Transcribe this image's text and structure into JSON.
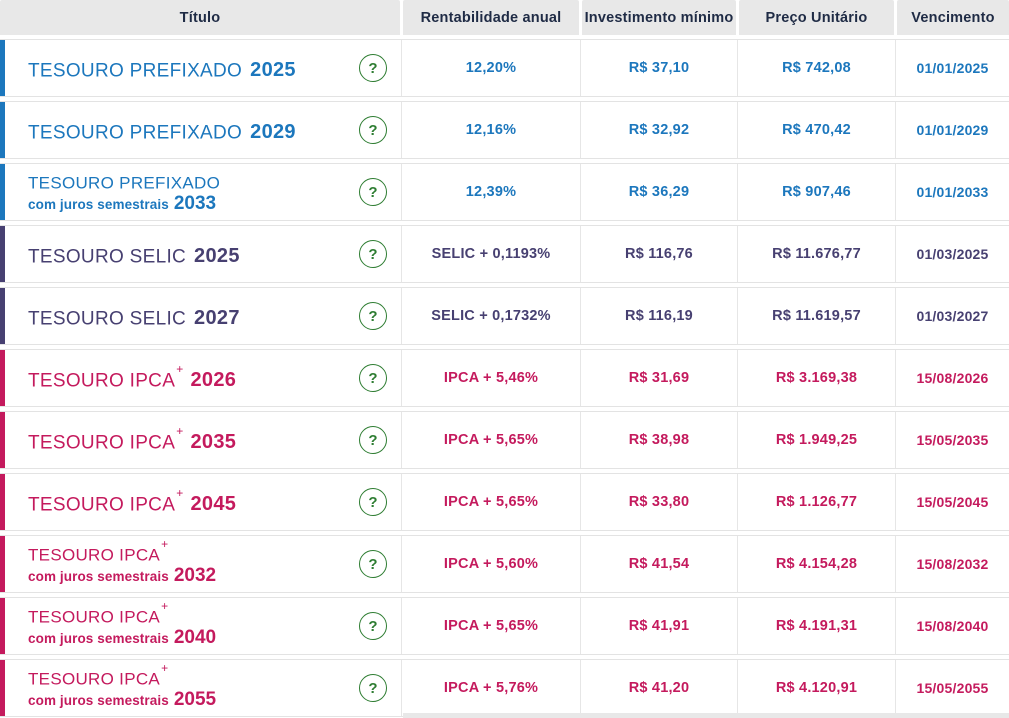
{
  "table": {
    "columns": [
      "Título",
      "Rentabilidade anual",
      "Investimento mínimo",
      "Preço Unitário",
      "Vencimento"
    ]
  },
  "colors": {
    "prefixado": "#1c77bd",
    "selic": "#474071",
    "ipca": "#c41a5d",
    "help_green": "#2e7d32",
    "header_bg": "#e8e8e8",
    "header_text": "#1f2b45"
  },
  "help_icon": "?",
  "rows": [
    {
      "type": "prefixado",
      "title": "TESOURO PREFIXADO",
      "title_sup": "",
      "subtitle": "",
      "year": "2025",
      "rentabilidade": "12,20%",
      "investimento": "R$ 37,10",
      "preco_unitario": "R$ 742,08",
      "vencimento": "01/01/2025"
    },
    {
      "type": "prefixado",
      "title": "TESOURO PREFIXADO",
      "title_sup": "",
      "subtitle": "",
      "year": "2029",
      "rentabilidade": "12,16%",
      "investimento": "R$ 32,92",
      "preco_unitario": "R$ 470,42",
      "vencimento": "01/01/2029"
    },
    {
      "type": "prefixado",
      "title": "TESOURO PREFIXADO",
      "title_sup": "",
      "subtitle": "com juros semestrais",
      "year": "2033",
      "rentabilidade": "12,39%",
      "investimento": "R$ 36,29",
      "preco_unitario": "R$ 907,46",
      "vencimento": "01/01/2033"
    },
    {
      "type": "selic",
      "title": "TESOURO SELIC",
      "title_sup": "",
      "subtitle": "",
      "year": "2025",
      "rentabilidade": "SELIC + 0,1193%",
      "investimento": "R$ 116,76",
      "preco_unitario": "R$ 11.676,77",
      "vencimento": "01/03/2025"
    },
    {
      "type": "selic",
      "title": "TESOURO SELIC",
      "title_sup": "",
      "subtitle": "",
      "year": "2027",
      "rentabilidade": "SELIC + 0,1732%",
      "investimento": "R$ 116,19",
      "preco_unitario": "R$ 11.619,57",
      "vencimento": "01/03/2027"
    },
    {
      "type": "ipca",
      "title": "TESOURO IPCA",
      "title_sup": "+",
      "subtitle": "",
      "year": "2026",
      "rentabilidade": "IPCA + 5,46%",
      "investimento": "R$ 31,69",
      "preco_unitario": "R$ 3.169,38",
      "vencimento": "15/08/2026"
    },
    {
      "type": "ipca",
      "title": "TESOURO IPCA",
      "title_sup": "+",
      "subtitle": "",
      "year": "2035",
      "rentabilidade": "IPCA + 5,65%",
      "investimento": "R$ 38,98",
      "preco_unitario": "R$ 1.949,25",
      "vencimento": "15/05/2035"
    },
    {
      "type": "ipca",
      "title": "TESOURO IPCA",
      "title_sup": "+",
      "subtitle": "",
      "year": "2045",
      "rentabilidade": "IPCA + 5,65%",
      "investimento": "R$ 33,80",
      "preco_unitario": "R$ 1.126,77",
      "vencimento": "15/05/2045"
    },
    {
      "type": "ipca",
      "title": "TESOURO IPCA",
      "title_sup": "+",
      "subtitle": "com juros semestrais",
      "year": "2032",
      "rentabilidade": "IPCA + 5,60%",
      "investimento": "R$ 41,54",
      "preco_unitario": "R$ 4.154,28",
      "vencimento": "15/08/2032"
    },
    {
      "type": "ipca",
      "title": "TESOURO IPCA",
      "title_sup": "+",
      "subtitle": "com juros semestrais",
      "year": "2040",
      "rentabilidade": "IPCA + 5,65%",
      "investimento": "R$ 41,91",
      "preco_unitario": "R$ 4.191,31",
      "vencimento": "15/08/2040"
    },
    {
      "type": "ipca",
      "title": "TESOURO IPCA",
      "title_sup": "+",
      "subtitle": "com juros semestrais",
      "year": "2055",
      "rentabilidade": "IPCA + 5,76%",
      "investimento": "R$ 41,20",
      "preco_unitario": "R$ 4.120,91",
      "vencimento": "15/05/2055"
    }
  ]
}
